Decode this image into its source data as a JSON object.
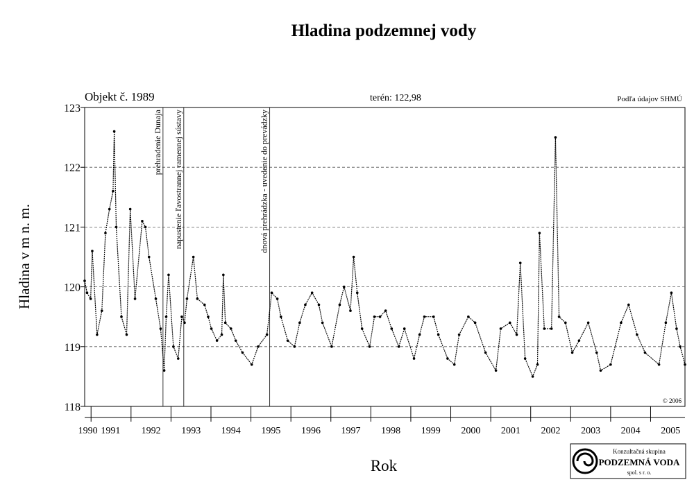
{
  "chart_data": {
    "type": "line",
    "title": "Hladina podzemnej vody",
    "subtitle": "Objekt č. 1989",
    "terrain_label": "terén: 122,98",
    "source": "Podľa údajov SHMÚ",
    "copyright": "© 2006",
    "y_label": "Hladina v m n. m.",
    "x_label": "Rok",
    "logo": {
      "line1": "Konzultačná skupina",
      "line2": "PODZEMNÁ VODA",
      "line3": "spol. s r. o."
    },
    "x": [
      1990.84,
      1990.9,
      1990.99,
      1991.03,
      1991.15,
      1991.27,
      1991.36,
      1991.46,
      1991.55,
      1991.58,
      1991.63,
      1991.76,
      1991.89,
      1991.98,
      1992.1,
      1992.28,
      1992.36,
      1992.45,
      1992.62,
      1992.74,
      1992.83,
      1992.88,
      1992.94,
      1993.06,
      1993.18,
      1993.27,
      1993.34,
      1993.4,
      1993.56,
      1993.66,
      1993.84,
      1993.93,
      1994.01,
      1994.15,
      1994.27,
      1994.31,
      1994.36,
      1994.5,
      1994.62,
      1994.79,
      1995.02,
      1995.18,
      1995.4,
      1995.52,
      1995.66,
      1995.75,
      1995.92,
      1996.09,
      1996.22,
      1996.36,
      1996.53,
      1996.7,
      1996.79,
      1997.02,
      1997.22,
      1997.33,
      1997.49,
      1997.57,
      1997.66,
      1997.78,
      1997.97,
      1998.09,
      1998.23,
      1998.37,
      1998.52,
      1998.7,
      1998.84,
      1999.08,
      1999.22,
      1999.34,
      1999.57,
      1999.69,
      1999.92,
      2000.09,
      2000.21,
      2000.44,
      2000.61,
      2000.87,
      2001.13,
      2001.25,
      2001.48,
      2001.65,
      2001.74,
      2001.86,
      2002.05,
      2002.17,
      2002.22,
      2002.34,
      2002.52,
      2002.62,
      2002.71,
      2002.87,
      2003.04,
      2003.21,
      2003.44,
      2003.65,
      2003.75,
      2004.0,
      2004.26,
      2004.45,
      2004.66,
      2004.86,
      2005.21,
      2005.38,
      2005.52,
      2005.65,
      2005.74,
      2005.86
    ],
    "series": [
      {
        "name": "Hladina",
        "color": "#000000",
        "values": [
          120.1,
          119.9,
          119.8,
          120.6,
          119.2,
          119.6,
          120.9,
          121.3,
          121.6,
          122.6,
          121.0,
          119.5,
          119.2,
          121.3,
          119.8,
          121.1,
          121.0,
          120.5,
          119.8,
          119.3,
          118.6,
          119.5,
          120.2,
          119.0,
          118.8,
          119.5,
          119.4,
          119.8,
          120.5,
          119.8,
          119.7,
          119.5,
          119.3,
          119.1,
          119.2,
          120.2,
          119.4,
          119.3,
          119.1,
          118.9,
          118.7,
          119.0,
          119.2,
          119.9,
          119.8,
          119.5,
          119.1,
          119.0,
          119.4,
          119.7,
          119.9,
          119.7,
          119.4,
          119.0,
          119.7,
          120.0,
          119.6,
          120.5,
          119.9,
          119.3,
          119.0,
          119.5,
          119.5,
          119.6,
          119.3,
          119.0,
          119.3,
          118.8,
          119.2,
          119.5,
          119.5,
          119.2,
          118.8,
          118.7,
          119.2,
          119.5,
          119.4,
          118.9,
          118.6,
          119.3,
          119.4,
          119.2,
          120.4,
          118.8,
          118.5,
          118.7,
          120.9,
          119.3,
          119.3,
          122.5,
          119.5,
          119.4,
          118.9,
          119.1,
          119.4,
          118.9,
          118.6,
          118.7,
          119.4,
          119.7,
          119.2,
          118.9,
          118.7,
          119.4,
          119.9,
          119.3,
          119.0,
          118.7
        ]
      }
    ],
    "xlim": [
      1990.84,
      2005.86
    ],
    "xticks": [
      1991,
      1992,
      1993,
      1994,
      1995,
      1996,
      1997,
      1998,
      1999,
      2000,
      2001,
      2002,
      2003,
      2004,
      2005
    ],
    "x_tick_labels": [
      {
        "value": 1990.92,
        "label": "1990"
      },
      {
        "value": 1991.49,
        "label": "1991"
      },
      {
        "value": 1992.5,
        "label": "1992"
      },
      {
        "value": 1993.5,
        "label": "1993"
      },
      {
        "value": 1994.5,
        "label": "1994"
      },
      {
        "value": 1995.5,
        "label": "1995"
      },
      {
        "value": 1996.5,
        "label": "1996"
      },
      {
        "value": 1997.5,
        "label": "1997"
      },
      {
        "value": 1998.5,
        "label": "1998"
      },
      {
        "value": 1999.5,
        "label": "1999"
      },
      {
        "value": 2000.5,
        "label": "2000"
      },
      {
        "value": 2001.5,
        "label": "2001"
      },
      {
        "value": 2002.5,
        "label": "2002"
      },
      {
        "value": 2003.5,
        "label": "2003"
      },
      {
        "value": 2004.5,
        "label": "2004"
      },
      {
        "value": 2005.5,
        "label": "2005"
      }
    ],
    "ylim": [
      118,
      123
    ],
    "yticks": [
      118,
      119,
      120,
      121,
      122,
      123
    ],
    "grid": true,
    "annotations": [
      {
        "x": 1992.8,
        "text": "prehradenie Dunaja"
      },
      {
        "x": 1993.32,
        "text": "napustenie ľavostrannej ramennej sústavy"
      },
      {
        "x": 1995.47,
        "text": "dnová prehrádzka - uvedenie do prevádzky"
      }
    ]
  }
}
